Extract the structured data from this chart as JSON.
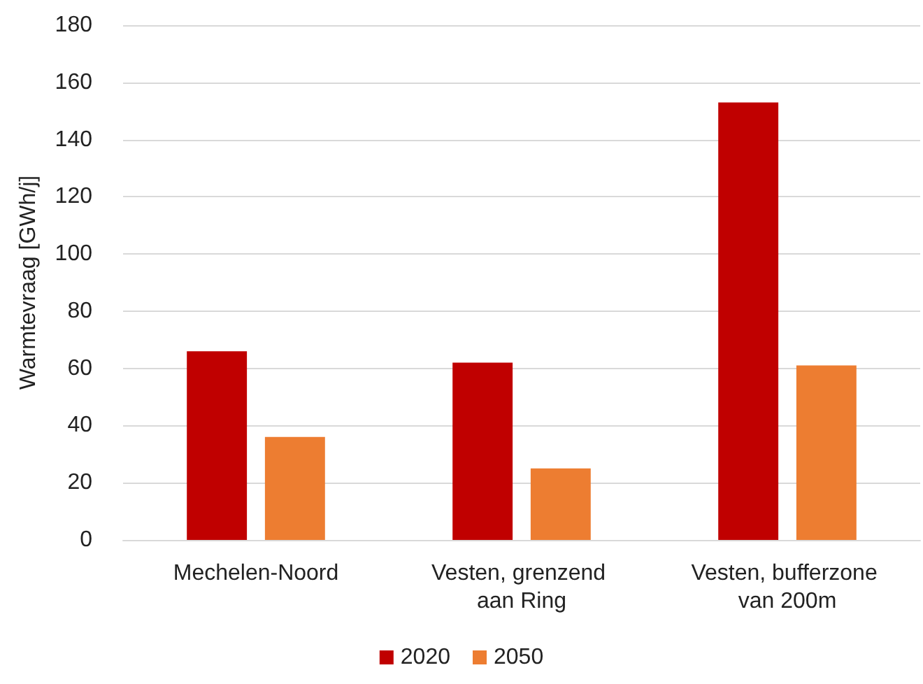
{
  "chart_data": {
    "type": "bar",
    "ylabel": "Warmtevraag [GWh/j]",
    "categories": [
      "Mechelen-Noord",
      "Vesten, grenzend aan Ring",
      "Vesten, bufferzone van 200m"
    ],
    "series": [
      {
        "name": "2020",
        "color": "#c00000",
        "values": [
          66,
          62,
          153
        ]
      },
      {
        "name": "2050",
        "color": "#ed7d31",
        "values": [
          36,
          25,
          61
        ]
      }
    ],
    "ylim": [
      0,
      180
    ],
    "yticks": [
      0,
      20,
      40,
      60,
      80,
      100,
      120,
      140,
      160,
      180
    ],
    "grid": "y",
    "legend": "bottom"
  }
}
